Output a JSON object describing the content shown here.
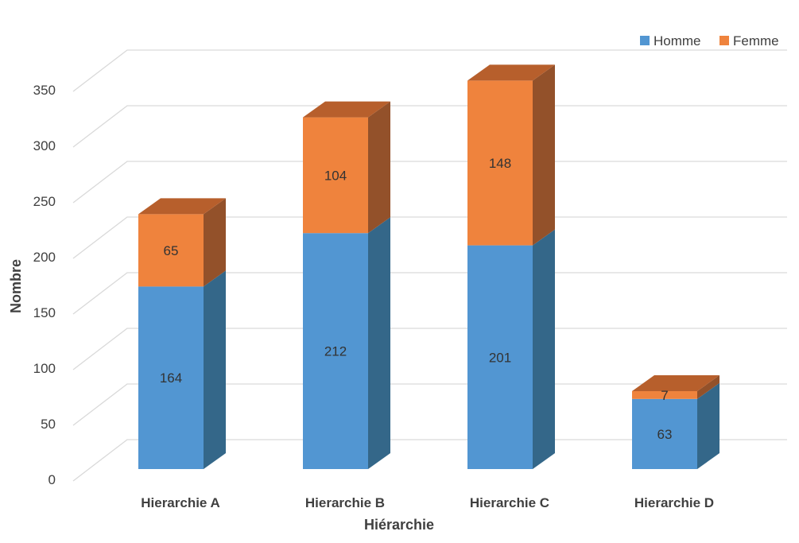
{
  "chart_data": {
    "type": "bar",
    "stacked": true,
    "three_d": true,
    "categories": [
      "Hierarchie A",
      "Hierarchie B",
      "Hierarchie C",
      "Hierarchie D"
    ],
    "series": [
      {
        "name": "Homme",
        "values": [
          164,
          212,
          201,
          63
        ],
        "color": "#5296d2",
        "side_color": "#346789",
        "top_color": "#4a84b8"
      },
      {
        "name": "Femme",
        "values": [
          65,
          104,
          148,
          7
        ],
        "color": "#ef833d",
        "side_color": "#93512a",
        "top_color": "#b75f2c"
      }
    ],
    "xlabel": "Hiérarchie",
    "ylabel": "Nombre",
    "ylim": [
      0,
      350
    ],
    "yticks": [
      "0",
      "50",
      "100",
      "150",
      "200",
      "250",
      "300",
      "350"
    ],
    "grid": true,
    "legend_position": "top-right"
  }
}
